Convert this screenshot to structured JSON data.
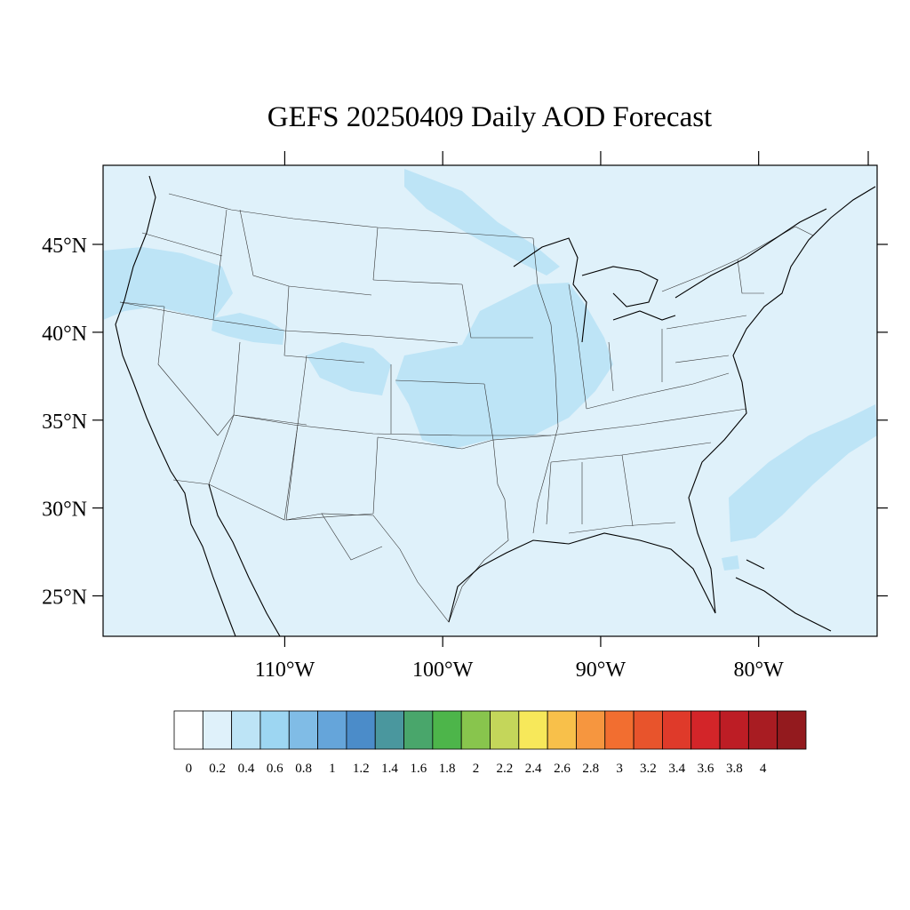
{
  "title": "GEFS 20250409 Daily AOD Forecast",
  "colors": {
    "ocean_background": "#dff1fa",
    "aod_0_2_to_0_4": "#bde4f6"
  },
  "map": {
    "projection": "lat-lon",
    "lon_range": [
      -121.5,
      -72.5
    ],
    "lat_range": [
      22.7,
      49.5
    ],
    "lat_ticks": [
      {
        "value": 45,
        "label": "45°N"
      },
      {
        "value": 40,
        "label": "40°N"
      },
      {
        "value": 35,
        "label": "35°N"
      },
      {
        "value": 30,
        "label": "30°N"
      },
      {
        "value": 25,
        "label": "25°N"
      }
    ],
    "lon_ticks": [
      {
        "value": -110,
        "label": "110°W"
      },
      {
        "value": -100,
        "label": "100°W"
      },
      {
        "value": -90,
        "label": "90°W"
      },
      {
        "value": -80,
        "label": "80°W"
      }
    ]
  },
  "colorbar": {
    "levels": [
      "0",
      "0.2",
      "0.4",
      "0.6",
      "0.8",
      "1",
      "1.2",
      "1.4",
      "1.6",
      "1.8",
      "2",
      "2.2",
      "2.4",
      "2.6",
      "2.8",
      "3",
      "3.2",
      "3.4",
      "3.6",
      "3.8",
      "4"
    ],
    "colors": [
      "#ffffff",
      "#dff1fa",
      "#bde4f6",
      "#9dd6f2",
      "#80bce6",
      "#65a5da",
      "#4b8cc9",
      "#4a979e",
      "#49a66b",
      "#4db54a",
      "#88c54d",
      "#c4d65a",
      "#f7e85a",
      "#f8c04a",
      "#f6963f",
      "#f26e30",
      "#e8542c",
      "#df3a2a",
      "#d32529",
      "#bd1d25",
      "#a81c22",
      "#931a1e"
    ]
  }
}
